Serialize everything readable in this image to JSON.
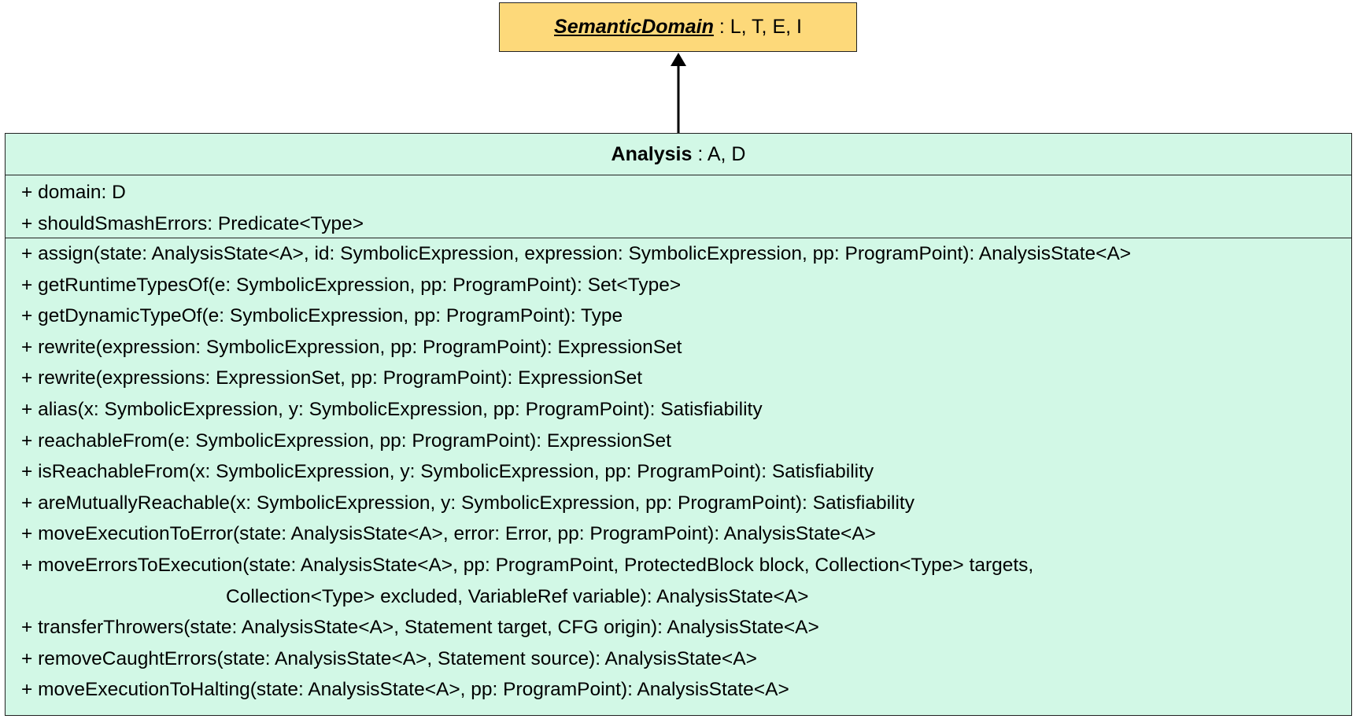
{
  "parent": {
    "name": "SemanticDomain",
    "params": " : L, T, E, I"
  },
  "class": {
    "name": "Analysis",
    "params": " : A, D",
    "attributes": [
      "+ domain: D",
      "+ shouldSmashErrors: Predicate<Type>"
    ],
    "methods": [
      "+ assign(state: AnalysisState<A>, id: SymbolicExpression, expression: SymbolicExpression, pp: ProgramPoint): AnalysisState<A>",
      "+ getRuntimeTypesOf(e: SymbolicExpression, pp: ProgramPoint): Set<Type>",
      "+ getDynamicTypeOf(e: SymbolicExpression, pp: ProgramPoint): Type",
      "+ rewrite(expression: SymbolicExpression, pp: ProgramPoint): ExpressionSet",
      "+ rewrite(expressions: ExpressionSet, pp: ProgramPoint): ExpressionSet",
      "+ alias(x: SymbolicExpression, y: SymbolicExpression, pp: ProgramPoint): Satisfiability",
      "+ reachableFrom(e: SymbolicExpression, pp: ProgramPoint): ExpressionSet",
      "+ isReachableFrom(x: SymbolicExpression, y: SymbolicExpression, pp: ProgramPoint): Satisfiability",
      "+ areMutuallyReachable(x: SymbolicExpression, y: SymbolicExpression, pp: ProgramPoint): Satisfiability",
      "+ moveExecutionToError(state: AnalysisState<A>, error: Error, pp: ProgramPoint): AnalysisState<A>",
      "+ moveErrorsToExecution(state: AnalysisState<A>, pp: ProgramPoint, ProtectedBlock block, Collection<Type> targets,",
      "Collection<Type> excluded, VariableRef variable): AnalysisState<A>",
      "+ transferThrowers(state: AnalysisState<A>, Statement target, CFG origin): AnalysisState<A>",
      "+ removeCaughtErrors(state: AnalysisState<A>, Statement source): AnalysisState<A>",
      "+ moveExecutionToHalting(state: AnalysisState<A>, pp: ProgramPoint): AnalysisState<A>"
    ]
  },
  "colors": {
    "parent_fill": "#fdd97a",
    "class_fill": "#d2f8e6",
    "stroke": "#222222"
  }
}
